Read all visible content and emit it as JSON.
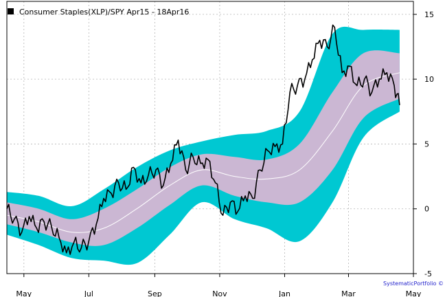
{
  "chart_data": {
    "type": "line",
    "title": "",
    "xlabel": "",
    "ylabel": "",
    "legend": {
      "label": "Consumer Staples(XLP)/SPY Apr15 - 18Apr16",
      "placement": "top-left",
      "marker_color": "#000000"
    },
    "credit": "SystematicPortfolio ©",
    "x_ticks": [
      "May",
      "Jul",
      "Sep",
      "Nov",
      "Jan",
      "Mar",
      "May"
    ],
    "y_ticks": [
      "-5",
      "0",
      "5",
      "10",
      "15"
    ],
    "ylim": [
      -5,
      16
    ],
    "xlim": [
      "2015-04-15",
      "2016-05-01"
    ],
    "grid": true,
    "colors": {
      "outer_band": "#00c8d2",
      "inner_band": "#cbb7d3",
      "mid_line": "#ffffff",
      "price_line": "#000000",
      "grid": "#b4b4b4"
    },
    "series": [
      {
        "name": "Consumer Staples(XLP)/SPY Apr15 - 18Apr16",
        "role": "price",
        "x": [
          "2015-04-15",
          "2015-04-22",
          "2015-04-29",
          "2015-05-06",
          "2015-05-13",
          "2015-05-20",
          "2015-05-27",
          "2015-06-03",
          "2015-06-10",
          "2015-06-17",
          "2015-06-24",
          "2015-07-01",
          "2015-07-08",
          "2015-07-15",
          "2015-07-22",
          "2015-07-29",
          "2015-08-05",
          "2015-08-12",
          "2015-08-19",
          "2015-08-26",
          "2015-09-02",
          "2015-09-09",
          "2015-09-16",
          "2015-09-23",
          "2015-09-30",
          "2015-10-07",
          "2015-10-14",
          "2015-10-21",
          "2015-10-28",
          "2015-11-04",
          "2015-11-11",
          "2015-11-18",
          "2015-11-25",
          "2015-12-02",
          "2015-12-09",
          "2015-12-16",
          "2015-12-23",
          "2015-12-30",
          "2016-01-06",
          "2016-01-13",
          "2016-01-20",
          "2016-01-27",
          "2016-02-03",
          "2016-02-10",
          "2016-02-17",
          "2016-02-24",
          "2016-03-02",
          "2016-03-09",
          "2016-03-16",
          "2016-03-23",
          "2016-03-30",
          "2016-04-06",
          "2016-04-13",
          "2016-04-18"
        ],
        "values": [
          0.0,
          -0.8,
          -1.8,
          -0.6,
          -1.5,
          -1.0,
          -1.4,
          -2.2,
          -3.4,
          -2.6,
          -3.0,
          -2.5,
          -1.2,
          0.8,
          1.2,
          2.0,
          1.5,
          3.2,
          2.0,
          2.6,
          3.0,
          1.8,
          3.5,
          5.3,
          3.0,
          4.0,
          3.5,
          3.8,
          2.0,
          -0.5,
          0.5,
          -0.2,
          1.0,
          0.8,
          3.0,
          4.5,
          4.8,
          5.0,
          9.0,
          9.5,
          10.0,
          11.5,
          13.0,
          12.5,
          14.0,
          10.5,
          11.0,
          9.5,
          10.0,
          9.0,
          10.0,
          10.5,
          9.5,
          8.0
        ]
      },
      {
        "name": "",
        "role": "band-mid",
        "x": [
          "2015-04-15",
          "2015-05-15",
          "2015-06-15",
          "2015-07-15",
          "2015-08-15",
          "2015-09-15",
          "2015-10-15",
          "2015-11-15",
          "2015-12-15",
          "2016-01-15",
          "2016-02-15",
          "2016-03-15",
          "2016-04-18"
        ],
        "values": [
          -0.5,
          -1.0,
          -1.8,
          -1.5,
          0.0,
          1.8,
          3.0,
          2.5,
          2.3,
          3.0,
          6.0,
          9.5,
          10.5
        ]
      },
      {
        "name": "",
        "role": "inner-band-upper",
        "x": [
          "2015-04-15",
          "2015-05-15",
          "2015-06-15",
          "2015-07-15",
          "2015-08-15",
          "2015-09-15",
          "2015-10-15",
          "2015-11-15",
          "2015-12-15",
          "2016-01-15",
          "2016-02-15",
          "2016-03-15",
          "2016-04-18"
        ],
        "values": [
          0.5,
          0.0,
          -0.8,
          0.0,
          1.5,
          3.2,
          4.2,
          4.0,
          3.8,
          5.0,
          9.0,
          12.0,
          12.0
        ]
      },
      {
        "name": "",
        "role": "inner-band-lower",
        "x": [
          "2015-04-15",
          "2015-05-15",
          "2015-06-15",
          "2015-07-15",
          "2015-08-15",
          "2015-09-15",
          "2015-10-15",
          "2015-11-15",
          "2015-12-15",
          "2016-01-15",
          "2016-02-15",
          "2016-03-15",
          "2016-04-18"
        ],
        "values": [
          -1.2,
          -1.8,
          -2.6,
          -2.8,
          -1.5,
          0.3,
          1.8,
          1.0,
          0.5,
          0.5,
          3.0,
          7.0,
          8.5
        ]
      },
      {
        "name": "",
        "role": "outer-band-upper",
        "x": [
          "2015-04-15",
          "2015-05-15",
          "2015-06-15",
          "2015-07-15",
          "2015-08-15",
          "2015-09-15",
          "2015-10-15",
          "2015-11-15",
          "2015-12-15",
          "2016-01-15",
          "2016-02-15",
          "2016-03-15",
          "2016-04-18"
        ],
        "values": [
          1.3,
          1.0,
          0.2,
          1.5,
          3.2,
          4.5,
          5.2,
          5.7,
          6.0,
          7.5,
          13.5,
          13.8,
          13.8
        ]
      },
      {
        "name": "",
        "role": "outer-band-lower",
        "x": [
          "2015-04-15",
          "2015-05-15",
          "2015-06-15",
          "2015-07-15",
          "2015-08-15",
          "2015-09-15",
          "2015-10-15",
          "2015-11-15",
          "2015-12-15",
          "2016-01-15",
          "2016-02-15",
          "2016-03-15",
          "2016-04-18"
        ],
        "values": [
          -2.0,
          -2.8,
          -3.8,
          -4.0,
          -4.2,
          -2.0,
          0.5,
          -0.8,
          -1.5,
          -2.5,
          0.5,
          5.5,
          7.5
        ]
      }
    ]
  }
}
